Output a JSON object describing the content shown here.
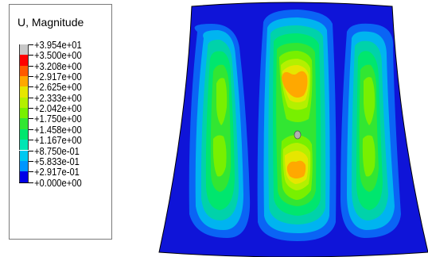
{
  "legend": {
    "title": "U, Magnitude",
    "entries": [
      {
        "label": "+3.954e+01",
        "color": "#c8c8c8"
      },
      {
        "label": "+3.500e+00",
        "color": "#ff0000"
      },
      {
        "label": "+3.208e+00",
        "color": "#ff5a00"
      },
      {
        "label": "+2.917e+00",
        "color": "#ffa800"
      },
      {
        "label": "+2.625e+00",
        "color": "#e6e600"
      },
      {
        "label": "+2.333e+00",
        "color": "#b4f000"
      },
      {
        "label": "+2.042e+00",
        "color": "#78f000"
      },
      {
        "label": "+1.750e+00",
        "color": "#32e632"
      },
      {
        "label": "+1.458e+00",
        "color": "#00e66e"
      },
      {
        "label": "+1.167e+00",
        "color": "#00e6b4"
      },
      {
        "label": "+8.750e-01",
        "color": "#00c8f0"
      },
      {
        "label": "+5.833e-01",
        "color": "#0096ff"
      },
      {
        "label": "+2.917e-01",
        "color": "#0050f0"
      },
      {
        "label": "+0.000e+00",
        "color": "#0000e6"
      }
    ]
  },
  "plot": {
    "colors": {
      "background": "#0f14d8",
      "outer": "#0a64f5",
      "l1": "#00b4f0",
      "l2": "#00d2aa",
      "l3": "#00e66e",
      "l4": "#32e632",
      "l5": "#78f000",
      "l6": "#b4f000",
      "l7": "#e6e600",
      "l8": "#ffa800",
      "node": "#b0b0b0"
    }
  }
}
